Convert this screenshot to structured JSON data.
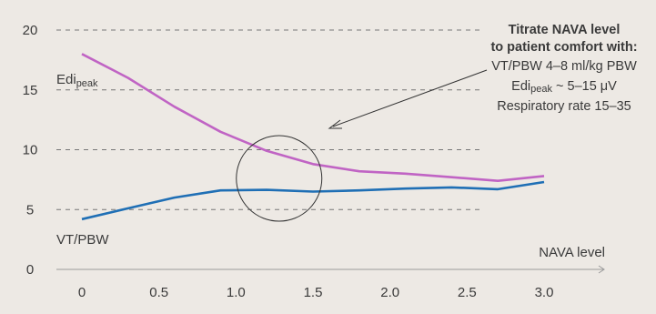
{
  "chart_data": {
    "type": "line",
    "xlabel": "NAVA level",
    "x_ticks": [
      "0",
      "0.5",
      "1.0",
      "1.5",
      "2.0",
      "2.5",
      "3.0"
    ],
    "y_ticks": [
      "0",
      "5",
      "10",
      "15",
      "20"
    ],
    "xlim": [
      0,
      3.0
    ],
    "ylim": [
      0,
      20
    ],
    "grid": "dashed horizontal at 5, 10, 15, 20",
    "series": [
      {
        "name_main": "Edi",
        "name_sub": "peak",
        "color": "#c064c4",
        "x": [
          0,
          0.3,
          0.6,
          0.9,
          1.2,
          1.5,
          1.8,
          2.1,
          2.4,
          2.7,
          3.0
        ],
        "y": [
          18.0,
          16.0,
          13.6,
          11.5,
          9.9,
          8.8,
          8.2,
          8.0,
          7.7,
          7.4,
          7.8
        ]
      },
      {
        "name_main": "VT/PBW",
        "name_sub": "",
        "color": "#1f6fb5",
        "x": [
          0,
          0.3,
          0.6,
          0.9,
          1.2,
          1.5,
          1.8,
          2.1,
          2.4,
          2.7,
          3.0
        ],
        "y": [
          4.2,
          5.1,
          6.0,
          6.6,
          6.65,
          6.5,
          6.6,
          6.75,
          6.85,
          6.7,
          7.3
        ]
      }
    ],
    "annotation": {
      "title_line1": "Titrate NAVA level",
      "title_line2": "to patient comfort with:",
      "line1": "VT/PBW 4–8 ml/kg PBW",
      "line2_main": "Edi",
      "line2_sub": "peak",
      "line2_rest": " ~ 5–15 μV",
      "line3": "Respiratory rate 15–35"
    },
    "circle_center": {
      "x": 1.28,
      "y": 7.6
    }
  }
}
